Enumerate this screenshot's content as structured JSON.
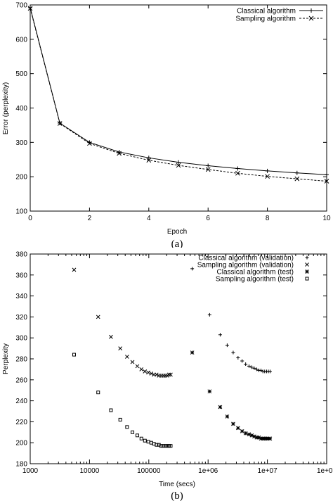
{
  "chart_data": [
    {
      "type": "line",
      "caption": "(a)",
      "xlabel": "Epoch",
      "ylabel": "Error (perplexity)",
      "xlim": [
        0,
        10
      ],
      "ylim": [
        100,
        700
      ],
      "xticks": [
        0,
        2,
        4,
        6,
        8,
        10
      ],
      "yticks": [
        100,
        200,
        300,
        400,
        500,
        600,
        700
      ],
      "legend_position": "top-right",
      "grid": false,
      "series": [
        {
          "name": "Classical algorithm",
          "marker": "plus",
          "line": "solid",
          "x": [
            0,
            1,
            2,
            3,
            4,
            5,
            6,
            7,
            8,
            9,
            10
          ],
          "y": [
            692,
            356,
            300,
            272,
            255,
            242,
            232,
            224,
            217,
            211,
            206
          ]
        },
        {
          "name": "Sampling algorithm",
          "marker": "cross",
          "line": "dashed",
          "x": [
            0,
            1,
            2,
            3,
            4,
            5,
            6,
            7,
            8,
            9,
            10
          ],
          "y": [
            690,
            355,
            297,
            268,
            248,
            233,
            221,
            210,
            201,
            194,
            187
          ]
        }
      ]
    },
    {
      "type": "scatter",
      "caption": "(b)",
      "xlabel": "Time (secs)",
      "ylabel": "Perplexity",
      "xscale": "log",
      "xlim": [
        1000,
        100000000
      ],
      "ylim": [
        180,
        380
      ],
      "xticks": [
        {
          "value": 1000,
          "label": "1000"
        },
        {
          "value": 10000,
          "label": "10000"
        },
        {
          "value": 100000,
          "label": "100000"
        },
        {
          "value": 1000000,
          "label": "1e+06"
        },
        {
          "value": 10000000,
          "label": "1e+07"
        },
        {
          "value": 100000000,
          "label": "1e+08"
        }
      ],
      "yticks": [
        180,
        200,
        220,
        240,
        260,
        280,
        300,
        320,
        340,
        360,
        380
      ],
      "legend_position": "top-right",
      "grid": false,
      "series": [
        {
          "name": "Classical algorithm (validation)",
          "marker": "plus",
          "x": [
            540000,
            1060000,
            1600000,
            2100000,
            2650000,
            3200000,
            3750000,
            4300000,
            4900000,
            5450000,
            6000000,
            6600000,
            7200000,
            7800000,
            8400000,
            9000000,
            9700000,
            10400000,
            11100000
          ],
          "y": [
            366,
            322,
            303,
            293,
            286,
            281,
            278,
            275,
            273,
            272,
            271,
            270,
            269,
            269,
            268,
            268,
            268,
            268,
            268
          ]
        },
        {
          "name": "Sampling algorithm (validation)",
          "marker": "cross",
          "x": [
            5500,
            14000,
            23000,
            33000,
            43000,
            53000,
            64000,
            75000,
            86000,
            98000,
            110000,
            122000,
            135000,
            148000,
            161000,
            175000,
            189000,
            204000,
            219000,
            234000
          ],
          "y": [
            365,
            320,
            301,
            290,
            282,
            277,
            273,
            270,
            268,
            267,
            266,
            265,
            265,
            264,
            264,
            264,
            264,
            264,
            265,
            265
          ]
        },
        {
          "name": "Classical algorithm (test)",
          "marker": "star",
          "x": [
            540000,
            1060000,
            1600000,
            2100000,
            2650000,
            3200000,
            3750000,
            4300000,
            4900000,
            5450000,
            6000000,
            6600000,
            7200000,
            7800000,
            8400000,
            9000000,
            9700000,
            10400000,
            11100000
          ],
          "y": [
            286,
            249,
            234,
            225,
            218,
            214,
            211,
            209,
            208,
            207,
            206,
            205,
            205,
            204,
            204,
            204,
            204,
            204,
            204
          ]
        },
        {
          "name": "Sampling algorithm (test)",
          "marker": "square",
          "x": [
            5500,
            14000,
            23000,
            33000,
            43000,
            53000,
            64000,
            75000,
            86000,
            98000,
            110000,
            122000,
            135000,
            148000,
            161000,
            175000,
            189000,
            204000,
            219000,
            234000
          ],
          "y": [
            284,
            248,
            231,
            222,
            215,
            210,
            207,
            204,
            202,
            201,
            200,
            199,
            198,
            198,
            197,
            197,
            197,
            197,
            197,
            197
          ]
        }
      ]
    }
  ]
}
